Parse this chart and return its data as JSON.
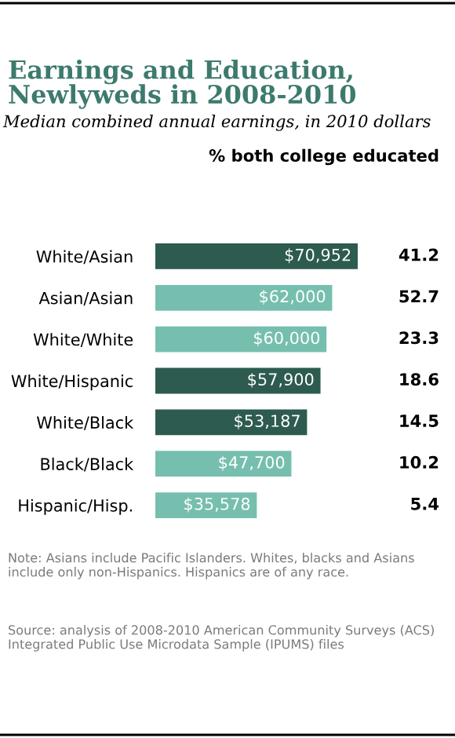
{
  "chart_data": [
    {
      "type": "bar",
      "orientation": "horizontal",
      "title": "Earnings and Education, Newlyweds in 2008-2010",
      "subtitle": "Median combined annual earnings, in 2010 dollars",
      "categories": [
        "White/Asian",
        "Asian/Asian",
        "White/White",
        "White/Hispanic",
        "White/Black",
        "Black/Black",
        "Hispanic/Hisp."
      ],
      "values": [
        70952,
        62000,
        60000,
        57900,
        53187,
        47700,
        35578
      ],
      "colors": [
        "#2d5b4f",
        "#76bfae",
        "#76bfae",
        "#2d5b4f",
        "#2d5b4f",
        "#76bfae",
        "#76bfae"
      ],
      "value_labels": [
        "$70,952",
        "$62,000",
        "$60,000",
        "$57,900",
        "$53,187",
        "$47,700",
        "$35,578"
      ],
      "annotations": [
        "Note: Asians include Pacific Islanders. Whites, blacks and Asians include only non-Hispanics. Hispanics are of any race.",
        "Source: analysis of 2008-2010 American Community Surveys (ACS) Integrated Public Use Microdata Sample (IPUMS) files"
      ]
    },
    {
      "type": "other",
      "title": "% both college educated",
      "annotations": [
        "41.2",
        "52.7",
        "23.3",
        "18.6",
        "14.5",
        "10.2",
        "5.4"
      ]
    }
  ]
}
